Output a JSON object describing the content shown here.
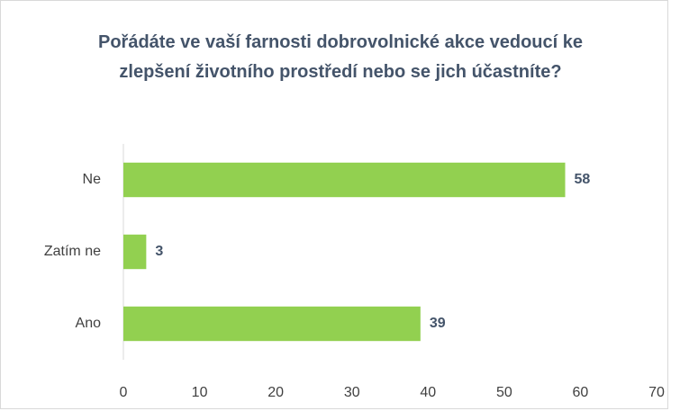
{
  "chart_data": {
    "type": "barh",
    "title": "Pořádáte ve vaší farnosti dobrovolnické akce vedoucí ke zlepšení životního prostředí nebo se jich účastníte?",
    "categories": [
      "Ne",
      "Zatím ne",
      "Ano"
    ],
    "values": [
      58,
      3,
      39
    ],
    "color": "#92d050",
    "xlim": [
      0,
      70
    ],
    "xticks": [
      0,
      10,
      20,
      30,
      40,
      50,
      60,
      70
    ],
    "grid": false
  }
}
